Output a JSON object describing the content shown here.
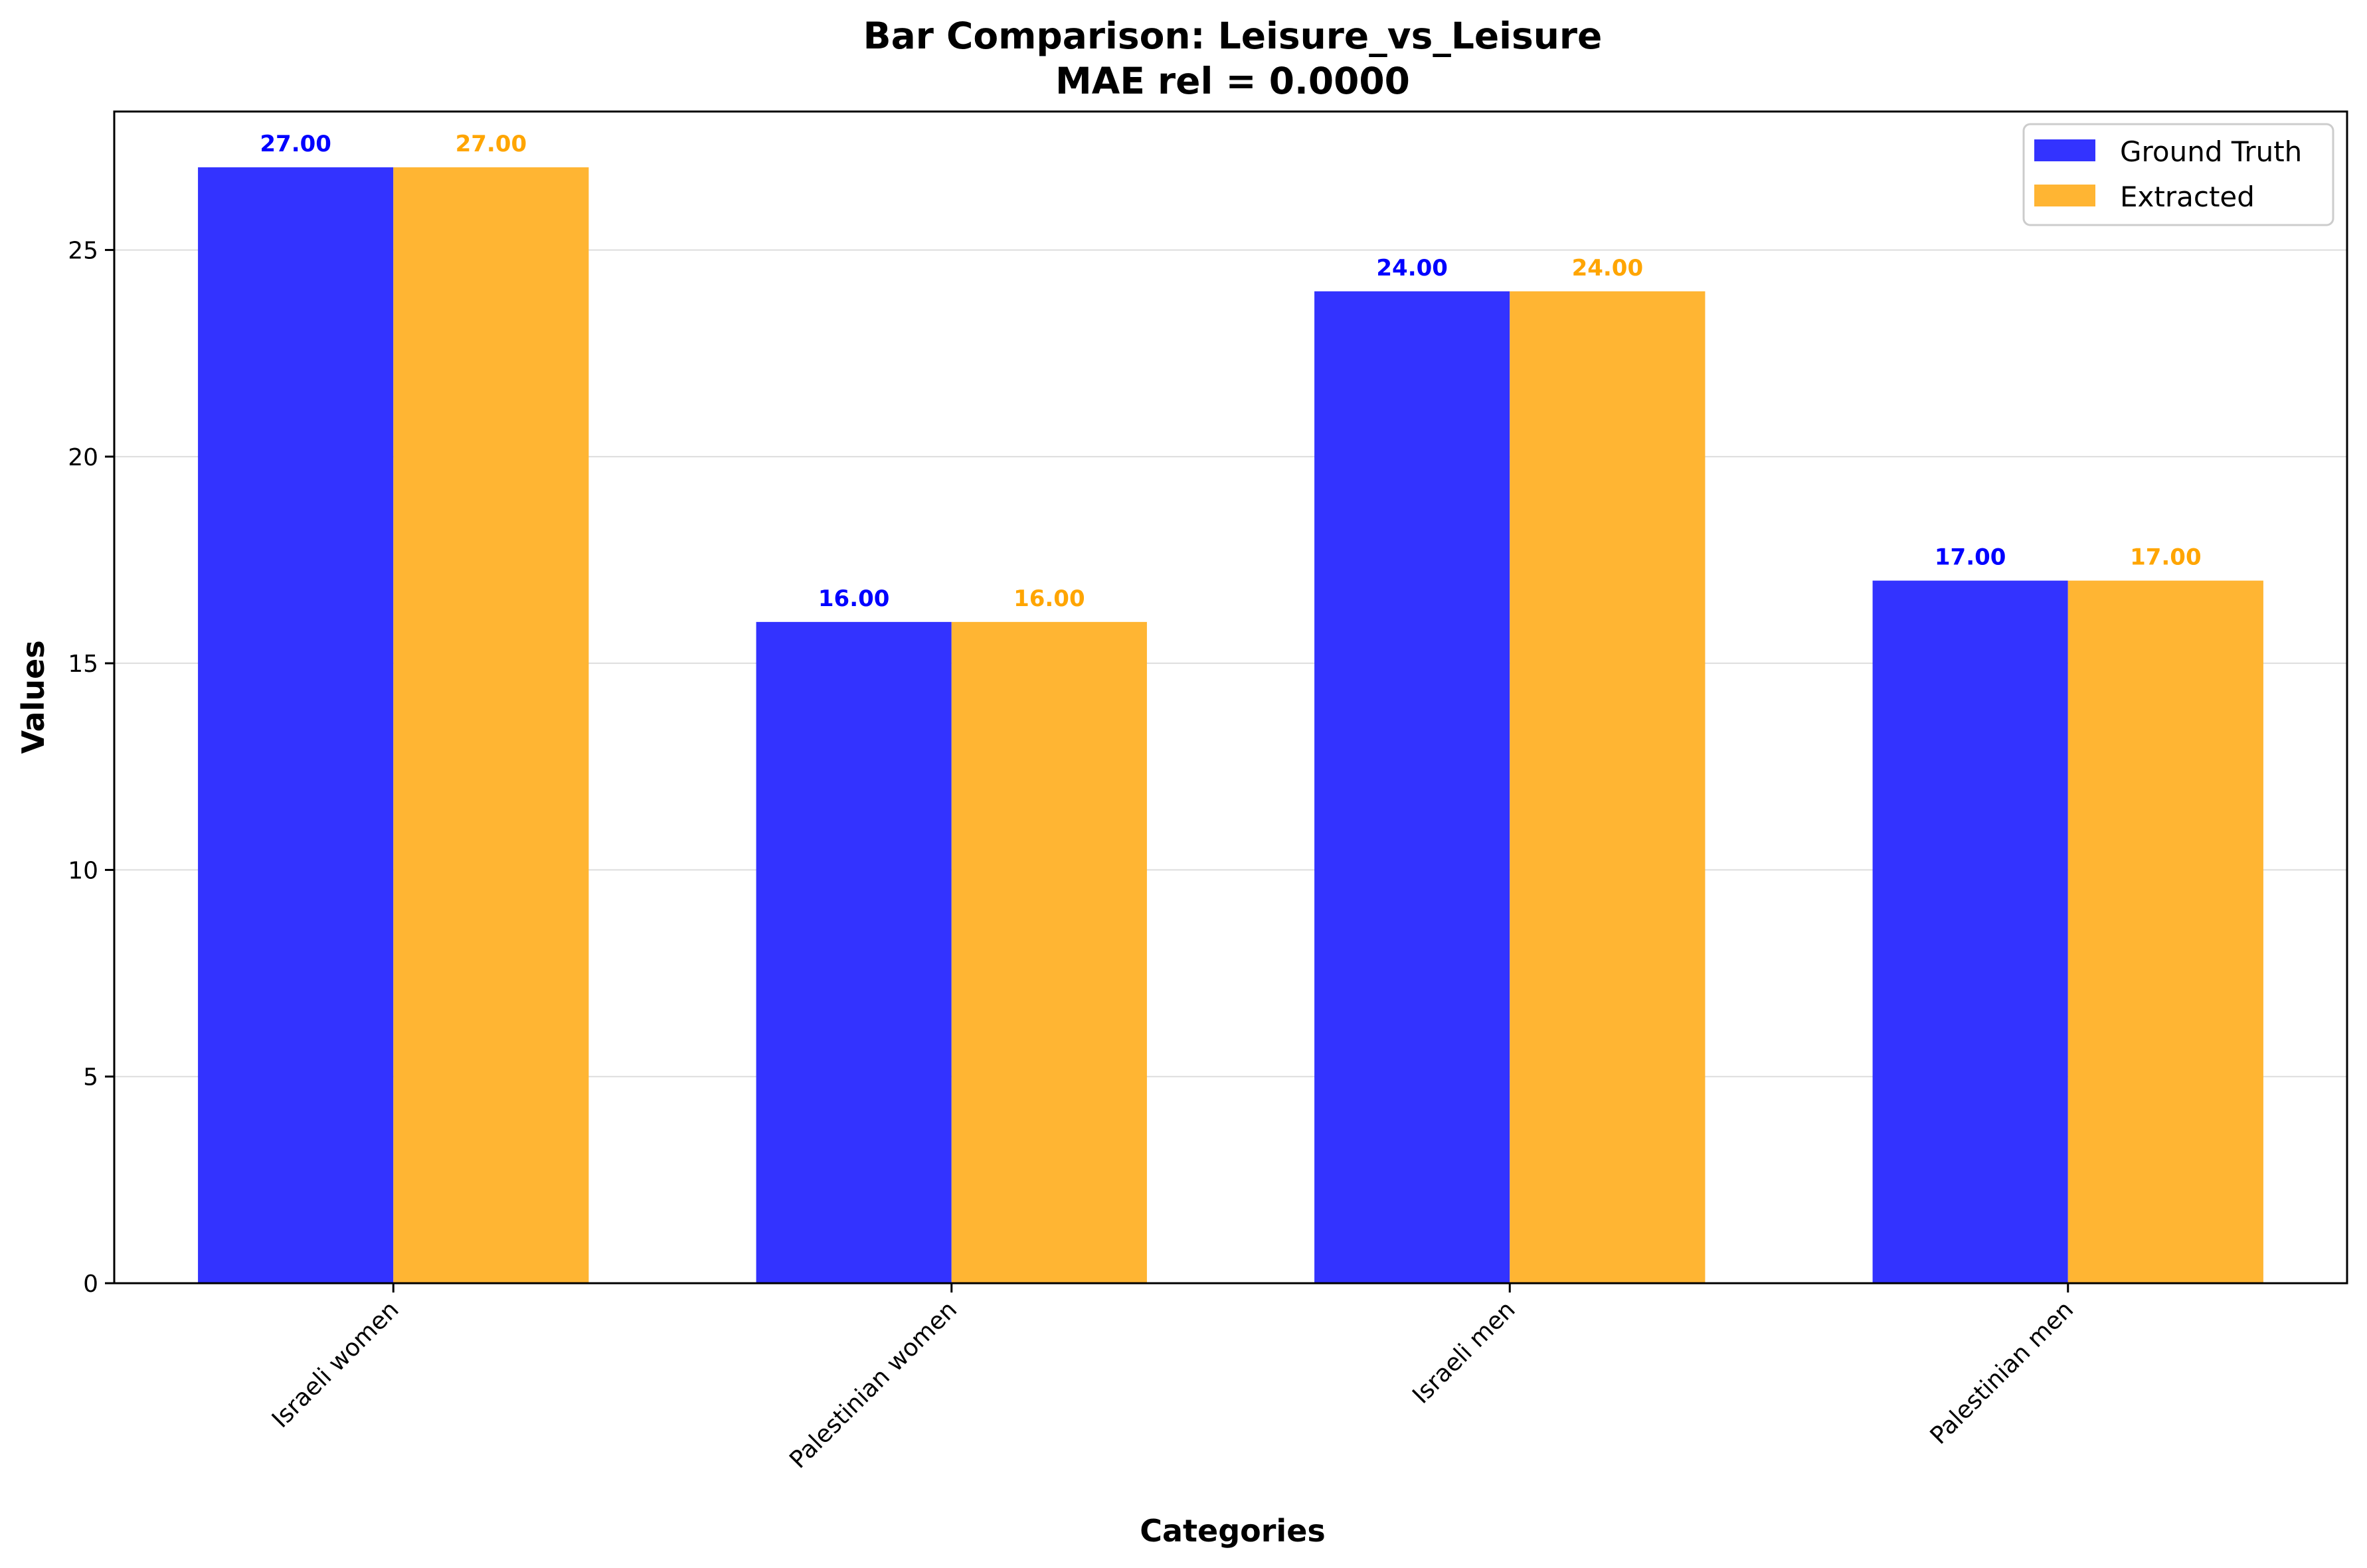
{
  "chart_data": {
    "type": "bar",
    "title": "Bar Comparison: Leisure_vs_Leisure",
    "subtitle": "MAE rel = 0.0000",
    "xlabel": "Categories",
    "ylabel": "Values",
    "categories": [
      "Israeli women",
      "Palestinian women",
      "Israeli men",
      "Palestinian men"
    ],
    "series": [
      {
        "name": "Ground Truth",
        "values": [
          27.0,
          16.0,
          24.0,
          17.0
        ],
        "color": "#3333ff",
        "label_color": "#0000ff"
      },
      {
        "name": "Extracted",
        "values": [
          27.0,
          16.0,
          24.0,
          17.0
        ],
        "color": "#ffb533",
        "label_color": "#ffa500"
      }
    ],
    "value_labels": [
      [
        "27.00",
        "16.00",
        "24.00",
        "17.00"
      ],
      [
        "27.00",
        "16.00",
        "24.00",
        "17.00"
      ]
    ],
    "ylim": [
      0,
      28.35
    ],
    "yticks": [
      0,
      5,
      10,
      15,
      20,
      25
    ],
    "grid": "y",
    "legend_position": "top-right"
  }
}
